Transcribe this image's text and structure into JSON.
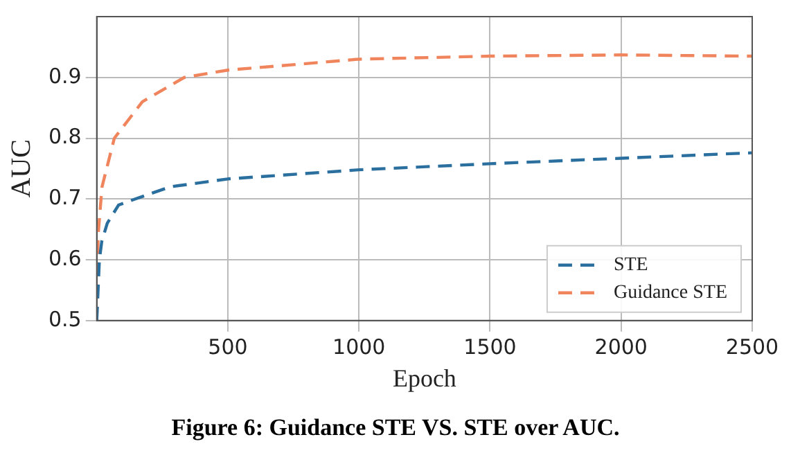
{
  "chart_data": {
    "type": "line",
    "xlabel": "Epoch",
    "ylabel": "AUC",
    "annotations": [
      "Figure 6: Guidance STE VS. STE over AUC."
    ],
    "xlim": [
      0,
      2500
    ],
    "xticks": [
      500,
      1000,
      1500,
      2000,
      2500
    ],
    "ylim": [
      0.5,
      1.0
    ],
    "yticks": [
      0.5,
      0.6,
      0.7,
      0.8,
      0.9
    ],
    "grid": true,
    "legend": "bottom right",
    "line_style": "dashed",
    "marker": "none",
    "series": [
      {
        "name": "STE",
        "color": "#2a6f9e",
        "x": [
          0,
          10,
          19,
          40,
          83,
          147,
          280,
          500,
          1000,
          1500,
          2000,
          2500
        ],
        "values": [
          0.5,
          0.6,
          0.63,
          0.66,
          0.69,
          0.7,
          0.72,
          0.733,
          0.748,
          0.758,
          0.767,
          0.776
        ]
      },
      {
        "name": "Guidance STE",
        "color": "#f0845c",
        "x": [
          0,
          5,
          20,
          67,
          174,
          334,
          500,
          1000,
          1500,
          2000,
          2500
        ],
        "values": [
          0.5,
          0.64,
          0.72,
          0.8,
          0.86,
          0.9,
          0.912,
          0.93,
          0.935,
          0.937,
          0.935
        ]
      }
    ]
  }
}
